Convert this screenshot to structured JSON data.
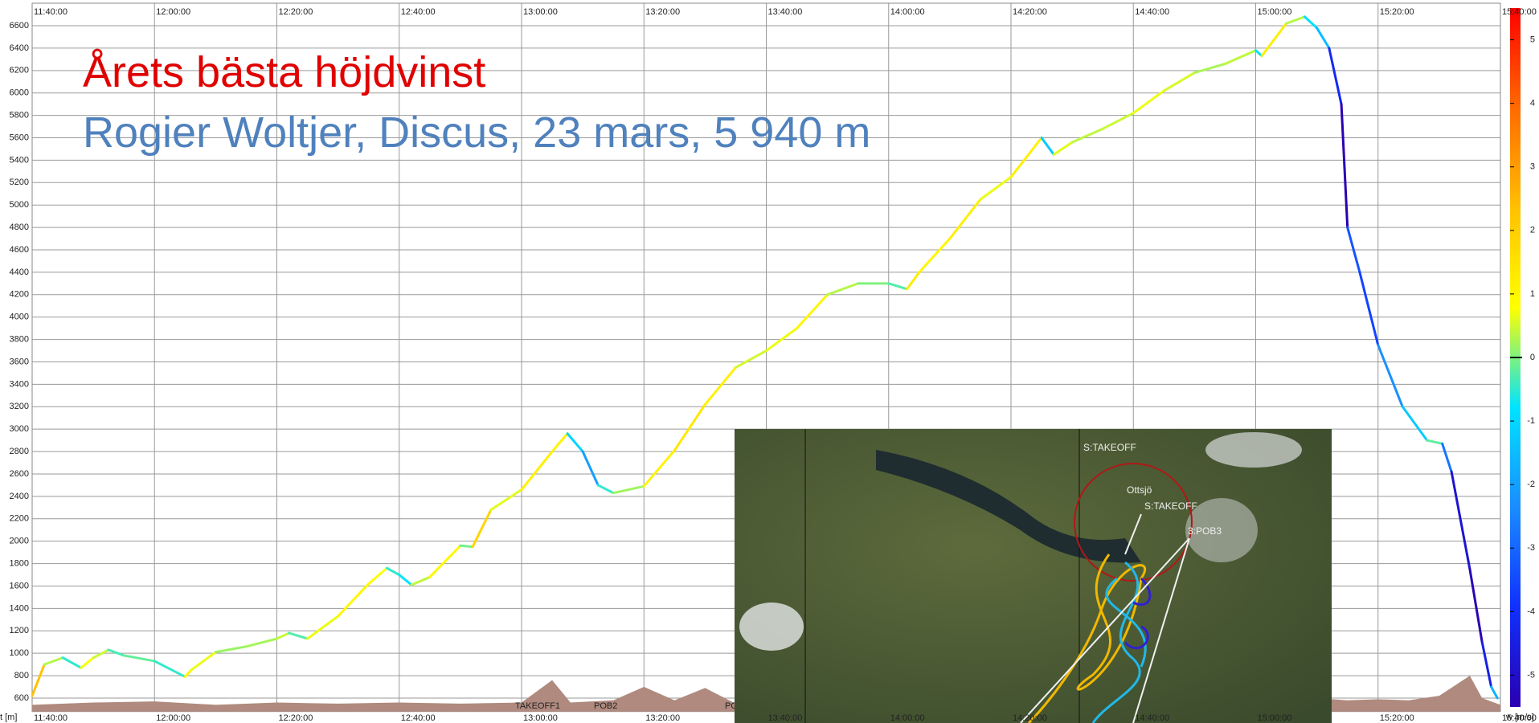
{
  "chart_data": {
    "type": "line",
    "title": "Årets bästa höjdvinst",
    "subtitle": "Rogier Woltjer, Discus, 23 mars, 5 940 m",
    "y_label": "t [m]",
    "colorbar_label": "w [m/s]",
    "x": [
      "11:40:00",
      "11:42:00",
      "11:45:00",
      "11:48:00",
      "11:50:00",
      "11:52:30",
      "11:55:00",
      "12:00:00",
      "12:05:00",
      "12:06:00",
      "12:10:00",
      "12:15:00",
      "12:20:00",
      "12:22:00",
      "12:25:00",
      "12:30:00",
      "12:35:00",
      "12:38:00",
      "12:40:00",
      "12:42:00",
      "12:45:00",
      "12:50:00",
      "12:52:00",
      "12:55:00",
      "13:00:00",
      "13:05:00",
      "13:07:30",
      "13:10:00",
      "13:12:30",
      "13:15:00",
      "13:20:00",
      "13:25:00",
      "13:30:00",
      "13:35:00",
      "13:40:00",
      "13:45:00",
      "13:50:00",
      "13:55:00",
      "14:00:00",
      "14:03:00",
      "14:05:00",
      "14:10:00",
      "14:15:00",
      "14:20:00",
      "14:25:00",
      "14:27:00",
      "14:30:00",
      "14:35:00",
      "14:40:00",
      "14:45:00",
      "14:50:00",
      "14:55:00",
      "15:00:00",
      "15:01:00",
      "15:05:00",
      "15:08:00",
      "15:10:00",
      "15:12:00",
      "15:14:00",
      "15:15:00",
      "15:17:00",
      "15:20:00",
      "15:24:00",
      "15:28:00",
      "15:30:30",
      "15:32:00",
      "15:35:00",
      "15:37:00",
      "15:38:30",
      "15:39:30"
    ],
    "series": [
      {
        "values": [
          620,
          900,
          960,
          870,
          960,
          1030,
          980,
          930,
          790,
          850,
          1010,
          1060,
          1130,
          1180,
          1130,
          1330,
          1620,
          1760,
          1700,
          1610,
          1680,
          1960,
          1950,
          2280,
          2460,
          2800,
          2960,
          2800,
          2500,
          2430,
          2490,
          2810,
          3220,
          3550,
          3700,
          3900,
          4200,
          4300,
          4300,
          4250,
          4400,
          4700,
          5050,
          5250,
          5600,
          5450,
          5560,
          5680,
          5820,
          6020,
          6180,
          6260,
          6380,
          6330,
          6620,
          6680,
          6580,
          6400,
          5900,
          4800,
          4400,
          3750,
          3200,
          2900,
          2870,
          2620,
          1750,
          1100,
          700,
          600
        ]
      }
    ],
    "terrain": {
      "color": "#b08a7e",
      "x": [
        "11:40:00",
        "11:50:00",
        "12:00:00",
        "12:10:00",
        "12:20:00",
        "12:30:00",
        "12:40:00",
        "12:50:00",
        "13:00:00",
        "13:05:00",
        "13:08:00",
        "13:15:00",
        "13:20:00",
        "13:25:00",
        "13:30:00",
        "13:35:00",
        "14:00:00",
        "14:30:00",
        "15:05:00",
        "15:10:00",
        "15:15:00",
        "15:20:00",
        "15:25:00",
        "15:30:00",
        "15:35:00",
        "15:37:00",
        "15:40:00"
      ],
      "values": [
        540,
        560,
        570,
        540,
        560,
        550,
        560,
        550,
        560,
        760,
        560,
        580,
        700,
        580,
        690,
        550,
        560,
        560,
        560,
        600,
        580,
        590,
        580,
        620,
        800,
        600,
        540
      ]
    },
    "xlim": [
      "11:40:00",
      "15:40:00"
    ],
    "xticks": [
      "11:40:00",
      "12:00:00",
      "12:20:00",
      "12:40:00",
      "13:00:00",
      "13:20:00",
      "13:40:00",
      "14:00:00",
      "14:20:00",
      "14:40:00",
      "15:00:00",
      "15:20:00",
      "15:40:00"
    ],
    "ylim": [
      480,
      6760
    ],
    "yticks": [
      600,
      800,
      1000,
      1200,
      1400,
      1600,
      1800,
      2000,
      2200,
      2400,
      2600,
      2800,
      3000,
      3200,
      3400,
      3600,
      3800,
      4000,
      4200,
      4400,
      4600,
      4800,
      5000,
      5200,
      5400,
      5600,
      5800,
      6000,
      6200,
      6400,
      6600
    ],
    "grid": true,
    "clim": [
      -5.5,
      5.5
    ],
    "colorbar_ticks": [
      5,
      4,
      3,
      2,
      1,
      0,
      -1,
      -2,
      -3,
      -4,
      -5
    ],
    "colormap": [
      "#2a00b0",
      "#1030ff",
      "#1a8cff",
      "#00e4ff",
      "#ffff00",
      "#ffc000",
      "#ff6a00",
      "#ff0000"
    ],
    "waypoints": [
      "TAKEOFF1",
      "POB2",
      "PO"
    ],
    "map": {
      "labels": [
        "S:TAKEOFF",
        "Ottsjö",
        "S:TAKEOFF",
        "3:POB3"
      ]
    }
  }
}
